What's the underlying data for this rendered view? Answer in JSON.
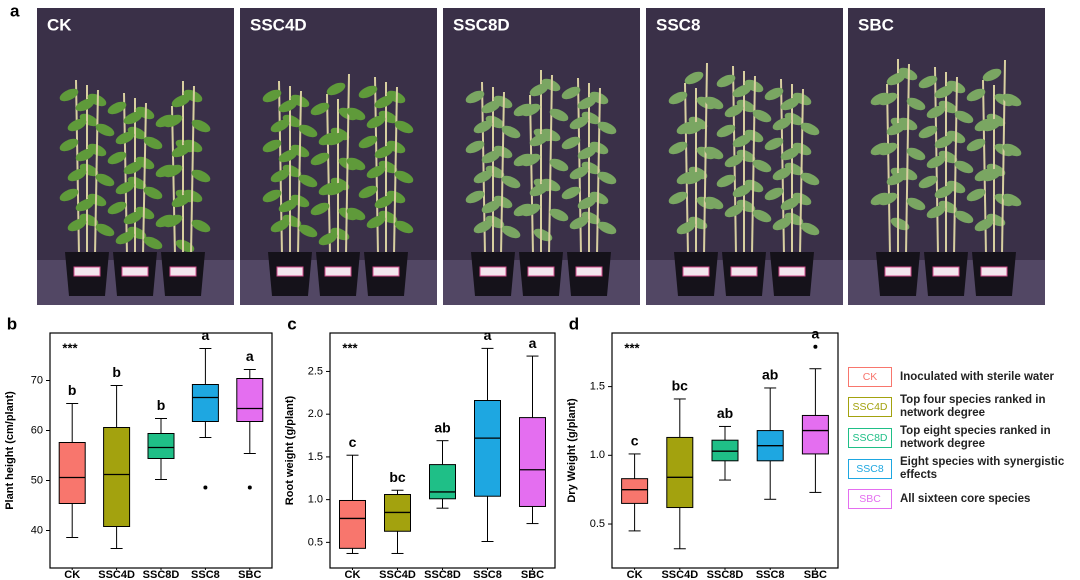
{
  "panel_labels": [
    "a",
    "b",
    "c",
    "d"
  ],
  "photos": [
    "CK",
    "SSC4D",
    "SSC8D",
    "SSC8",
    "SBC"
  ],
  "chart_data": [
    {
      "type": "box",
      "y_label": "Plant height (cm/plant)",
      "significance": "***",
      "categories": [
        "CK",
        "SSC4D",
        "SSC8D",
        "SSC8",
        "SBC"
      ],
      "colors": [
        "#f8766d",
        "#a3a20e",
        "#1fbf87",
        "#1ea7e1",
        "#e46ef0"
      ],
      "ylim": [
        32.5,
        79.5
      ],
      "yticks": [
        40,
        50,
        60,
        70
      ],
      "boxes": [
        {
          "min": 38.6,
          "q1": 45.4,
          "median": 50.6,
          "q3": 57.6,
          "max": 65.4
        },
        {
          "min": 36.4,
          "q1": 40.8,
          "median": 51.2,
          "q3": 60.6,
          "max": 69
        },
        {
          "min": 50.2,
          "q1": 54.4,
          "median": 56.6,
          "q3": 59.4,
          "max": 62.4
        },
        {
          "min": 58.6,
          "q1": 61.8,
          "median": 66.6,
          "q3": 69.2,
          "max": 76.4,
          "outliers": [
            48.6
          ]
        },
        {
          "min": 55.4,
          "q1": 61.8,
          "median": 64.4,
          "q3": 70.4,
          "max": 72.2,
          "outliers": [
            48.6
          ]
        }
      ],
      "letters": [
        "b",
        "b",
        "b",
        "a",
        "a"
      ]
    },
    {
      "type": "box",
      "y_label": "Root weight (g/plant)",
      "significance": "***",
      "categories": [
        "CK",
        "SSC4D",
        "SSC8D",
        "SSC8",
        "SBC"
      ],
      "colors": [
        "#f8766d",
        "#a3a20e",
        "#1fbf87",
        "#1ea7e1",
        "#e46ef0"
      ],
      "ylim": [
        0.2,
        2.95
      ],
      "yticks": [
        0.5,
        {
          "value": 1,
          "label": "1.0"
        },
        1.5,
        {
          "value": 2,
          "label": "2.0"
        },
        2.5
      ],
      "boxes": [
        {
          "min": 0.37,
          "q1": 0.43,
          "median": 0.78,
          "q3": 0.99,
          "max": 1.52
        },
        {
          "min": 0.37,
          "q1": 0.63,
          "median": 0.85,
          "q3": 1.06,
          "max": 1.11
        },
        {
          "min": 0.9,
          "q1": 1.01,
          "median": 1.09,
          "q3": 1.41,
          "max": 1.69
        },
        {
          "min": 0.51,
          "q1": 1.04,
          "median": 1.72,
          "q3": 2.16,
          "max": 2.77
        },
        {
          "min": 0.72,
          "q1": 0.92,
          "median": 1.35,
          "q3": 1.96,
          "max": 2.68
        }
      ],
      "letters": [
        "c",
        "bc",
        "ab",
        "a",
        "a"
      ]
    },
    {
      "type": "box",
      "y_label": "Dry Weight (g/plant)",
      "significance": "***",
      "categories": [
        "CK",
        "SSC4D",
        "SSC8D",
        "SSC8",
        "SBC"
      ],
      "colors": [
        "#f8766d",
        "#a3a20e",
        "#1fbf87",
        "#1ea7e1",
        "#e46ef0"
      ],
      "ylim": [
        0.18,
        1.89
      ],
      "yticks": [
        0.5,
        {
          "value": 1,
          "label": "1.0"
        },
        1.5
      ],
      "boxes": [
        {
          "min": 0.45,
          "q1": 0.65,
          "median": 0.75,
          "q3": 0.83,
          "max": 1.01
        },
        {
          "min": 0.32,
          "q1": 0.62,
          "median": 0.84,
          "q3": 1.13,
          "max": 1.41
        },
        {
          "min": 0.82,
          "q1": 0.96,
          "median": 1.03,
          "q3": 1.11,
          "max": 1.21
        },
        {
          "min": 0.68,
          "q1": 0.96,
          "median": 1.07,
          "q3": 1.18,
          "max": 1.49
        },
        {
          "min": 0.73,
          "q1": 1.01,
          "median": 1.18,
          "q3": 1.29,
          "max": 1.63,
          "outliers": [
            1.79
          ]
        }
      ],
      "letters": [
        "c",
        "bc",
        "ab",
        "ab",
        "a"
      ]
    }
  ],
  "legend": [
    {
      "code": "CK",
      "desc": "Inoculated with sterile water",
      "color": "#f8766d"
    },
    {
      "code": "SSC4D",
      "desc": "Top four species ranked in network degree",
      "color": "#a3a20e"
    },
    {
      "code": "SSC8D",
      "desc": "Top eight species ranked in network degree",
      "color": "#1fbf87"
    },
    {
      "code": "SSC8",
      "desc": "Eight species with synergistic effects",
      "color": "#1ea7e1"
    },
    {
      "code": "SBC",
      "desc": "All sixteen core species",
      "color": "#e46ef0"
    }
  ]
}
